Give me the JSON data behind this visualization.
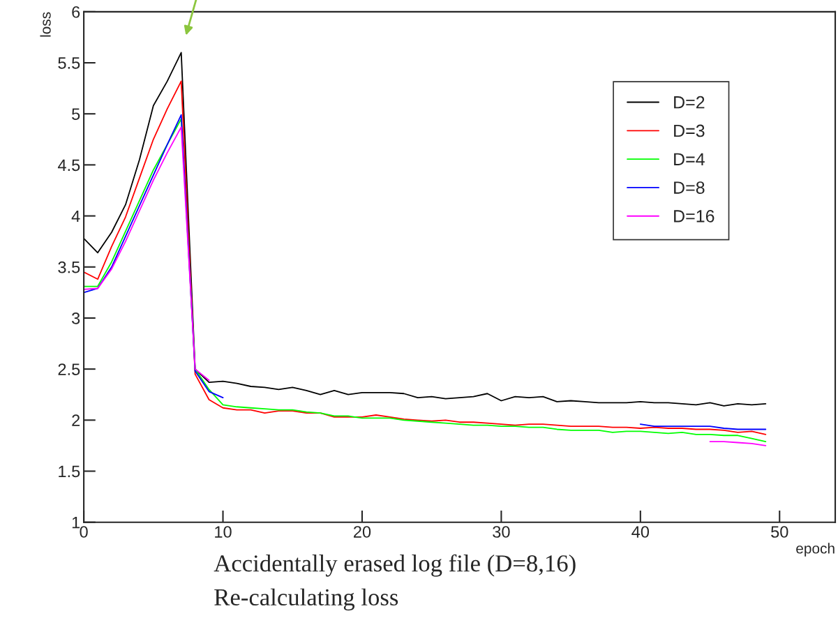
{
  "chart_data": {
    "type": "line",
    "xlabel": "epoch",
    "ylabel": "loss",
    "x": [
      0,
      1,
      2,
      3,
      4,
      5,
      6,
      7,
      8,
      9,
      10,
      11,
      12,
      13,
      14,
      15,
      16,
      17,
      18,
      19,
      20,
      21,
      22,
      23,
      24,
      25,
      26,
      27,
      28,
      29,
      30,
      31,
      32,
      33,
      34,
      35,
      36,
      37,
      38,
      39,
      40,
      41,
      42,
      43,
      44,
      45,
      46,
      47,
      48,
      49
    ],
    "xlim": [
      0,
      54
    ],
    "xticks": [
      0,
      10,
      20,
      30,
      40,
      50
    ],
    "ylim": [
      1,
      6
    ],
    "yticks": [
      1,
      1.5,
      2,
      2.5,
      3,
      3.5,
      4,
      4.5,
      5,
      5.5,
      6
    ],
    "grid": false,
    "legend": "top right",
    "marker": "none",
    "line_style": "solid",
    "series": [
      {
        "name": "D=2",
        "color": "#000000",
        "values": [
          3.78,
          3.64,
          3.84,
          4.11,
          4.55,
          5.08,
          5.32,
          5.6,
          2.5,
          2.37,
          2.38,
          2.36,
          2.33,
          2.32,
          2.3,
          2.32,
          2.29,
          2.25,
          2.29,
          2.25,
          2.27,
          2.27,
          2.27,
          2.26,
          2.22,
          2.23,
          2.21,
          2.22,
          2.23,
          2.26,
          2.19,
          2.23,
          2.22,
          2.23,
          2.18,
          2.19,
          2.18,
          2.17,
          2.17,
          2.17,
          2.18,
          2.17,
          2.17,
          2.16,
          2.15,
          2.17,
          2.14,
          2.16,
          2.15,
          2.16
        ]
      },
      {
        "name": "D=3",
        "color": "#ff0000",
        "values": [
          3.45,
          3.38,
          3.7,
          3.99,
          4.37,
          4.75,
          5.05,
          5.32,
          2.45,
          2.2,
          2.12,
          2.1,
          2.1,
          2.07,
          2.09,
          2.09,
          2.07,
          2.07,
          2.03,
          2.03,
          2.03,
          2.05,
          2.03,
          2.01,
          2.0,
          1.99,
          2.0,
          1.98,
          1.98,
          1.97,
          1.96,
          1.95,
          1.96,
          1.96,
          1.95,
          1.94,
          1.94,
          1.94,
          1.93,
          1.93,
          1.92,
          1.93,
          1.92,
          1.92,
          1.91,
          1.91,
          1.9,
          1.88,
          1.89,
          1.86
        ]
      },
      {
        "name": "D=4",
        "color": "#00ff00",
        "values": [
          3.31,
          3.31,
          3.55,
          3.85,
          4.15,
          4.45,
          4.7,
          4.95,
          2.5,
          2.3,
          2.15,
          2.13,
          2.12,
          2.11,
          2.1,
          2.1,
          2.08,
          2.07,
          2.04,
          2.04,
          2.02,
          2.02,
          2.02,
          2.0,
          1.99,
          1.98,
          1.97,
          1.96,
          1.95,
          1.95,
          1.94,
          1.94,
          1.93,
          1.93,
          1.91,
          1.9,
          1.9,
          1.9,
          1.88,
          1.89,
          1.89,
          1.88,
          1.87,
          1.88,
          1.86,
          1.86,
          1.85,
          1.85,
          1.82,
          1.79
        ]
      },
      {
        "name": "D=8",
        "color": "#0000ff",
        "values": [
          3.25,
          3.29,
          3.5,
          3.8,
          4.1,
          4.4,
          4.7,
          4.99,
          2.48,
          2.28,
          2.22,
          null,
          null,
          null,
          null,
          null,
          null,
          null,
          null,
          null,
          null,
          null,
          null,
          null,
          null,
          null,
          null,
          null,
          null,
          null,
          null,
          null,
          null,
          null,
          null,
          null,
          null,
          null,
          null,
          null,
          1.96,
          1.94,
          1.94,
          1.94,
          1.94,
          1.94,
          1.92,
          1.91,
          1.91,
          1.91
        ]
      },
      {
        "name": "D=16",
        "color": "#ff00ff",
        "values": [
          3.28,
          3.29,
          3.48,
          3.75,
          4.05,
          4.35,
          4.62,
          4.87,
          2.5,
          2.39,
          null,
          null,
          null,
          null,
          null,
          null,
          null,
          null,
          null,
          null,
          null,
          null,
          null,
          null,
          null,
          null,
          null,
          null,
          null,
          null,
          null,
          null,
          null,
          null,
          null,
          null,
          null,
          null,
          null,
          null,
          null,
          null,
          null,
          null,
          null,
          1.79,
          1.79,
          1.78,
          1.77,
          1.75
        ]
      }
    ],
    "annotations": [
      "Accidentally erased log file (D=8,16)",
      "Re-calculating loss"
    ]
  }
}
